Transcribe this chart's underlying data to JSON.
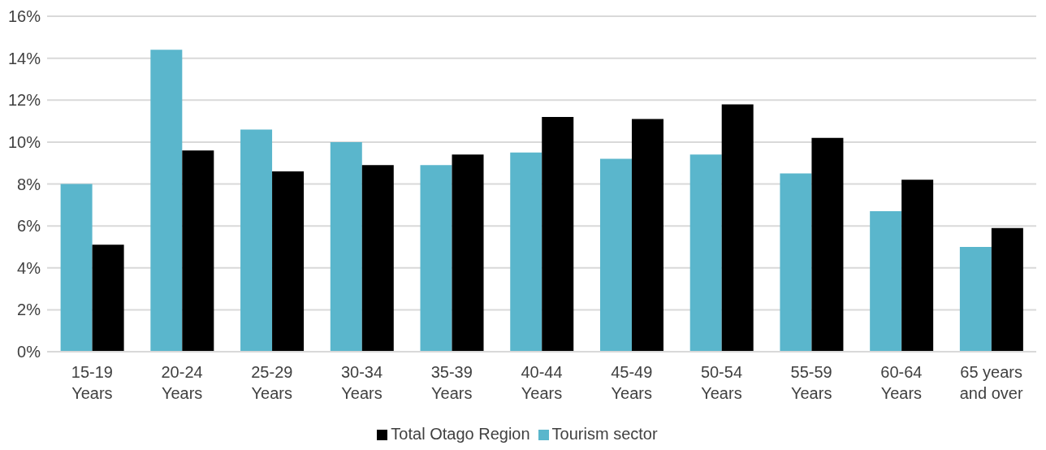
{
  "chart_data": {
    "type": "bar",
    "categories": [
      "15-19 Years",
      "20-24 Years",
      "25-29 Years",
      "30-34 Years",
      "35-39 Years",
      "40-44 Years",
      "45-49 Years",
      "50-54 Years",
      "55-59 Years",
      "60-64 Years",
      "65 years and over"
    ],
    "series": [
      {
        "name": "Tourism sector",
        "color": "#5ab6cc",
        "values": [
          8.0,
          14.4,
          10.6,
          10.0,
          8.9,
          9.5,
          9.2,
          9.4,
          8.5,
          6.7,
          5.0
        ]
      },
      {
        "name": "Total Otago Region",
        "color": "#000000",
        "values": [
          5.1,
          9.6,
          8.6,
          8.9,
          9.4,
          11.2,
          11.1,
          11.8,
          10.2,
          8.2,
          5.9
        ]
      }
    ],
    "ylim": [
      0,
      16
    ],
    "yticks": [
      {
        "value": 0,
        "label": "0%"
      },
      {
        "value": 2,
        "label": "2%"
      },
      {
        "value": 4,
        "label": "4%"
      },
      {
        "value": 6,
        "label": "6%"
      },
      {
        "value": 8,
        "label": "8%"
      },
      {
        "value": 10,
        "label": "10%"
      },
      {
        "value": 12,
        "label": "12%"
      },
      {
        "value": 14,
        "label": "14%"
      },
      {
        "value": 16,
        "label": "16%"
      }
    ],
    "grid": "y",
    "legend": "bottom"
  }
}
